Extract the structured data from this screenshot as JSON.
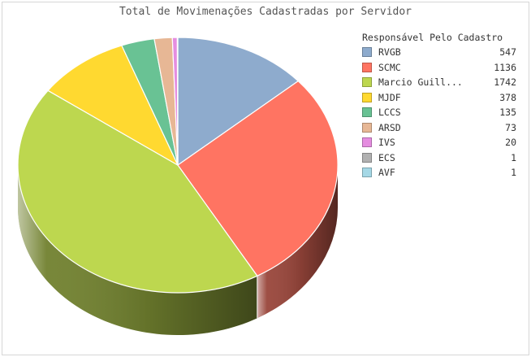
{
  "chart_data": {
    "type": "pie",
    "title": "Total de Movimenações Cadastradas por Servidor",
    "legend_title": "Responsável Pelo Cadastro",
    "legend_position": "right",
    "style": "3d",
    "slices": [
      {
        "label": "RVGB",
        "value": 547,
        "color": "#8eabcd"
      },
      {
        "label": "SCMC",
        "value": 1136,
        "color": "#ff7462"
      },
      {
        "label": "Marcio Guill...",
        "value": 1742,
        "color": "#bdd74f"
      },
      {
        "label": "MJDF",
        "value": 378,
        "color": "#ffd930"
      },
      {
        "label": "LCCS",
        "value": 135,
        "color": "#69c294"
      },
      {
        "label": "ARSD",
        "value": 73,
        "color": "#e7b795"
      },
      {
        "label": "IVS",
        "value": 20,
        "color": "#e58de0"
      },
      {
        "label": "ECS",
        "value": 1,
        "color": "#b1b1b1"
      },
      {
        "label": "AVF",
        "value": 1,
        "color": "#a5d8e6"
      }
    ]
  }
}
